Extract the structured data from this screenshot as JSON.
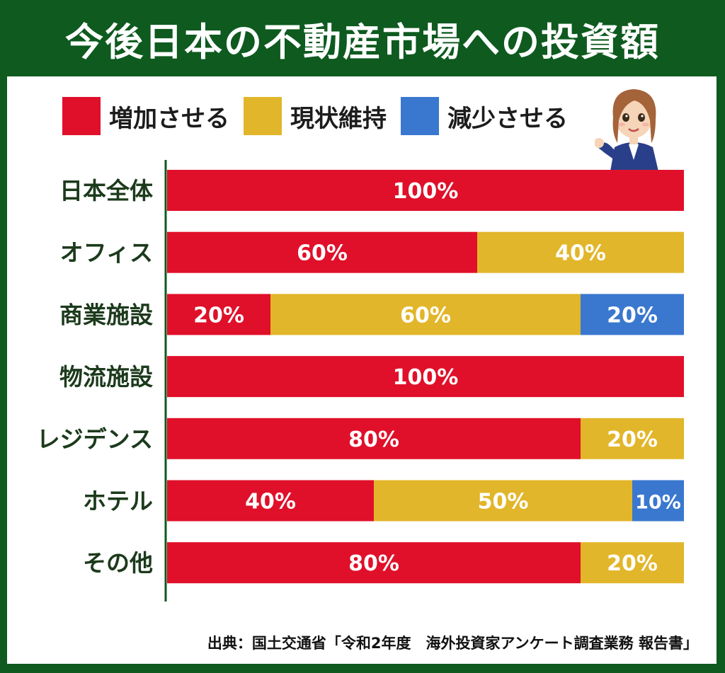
{
  "title": "今後日本の不動産市場への投資額",
  "source": "出典：国土交通省「令和2年度　海外投資家アンケート調査業務 報告書」",
  "legend": [
    {
      "label": "増加させる",
      "color": "#e0102a"
    },
    {
      "label": "現状維持",
      "color": "#e2b62a"
    },
    {
      "label": "減少させる",
      "color": "#3a78cf"
    }
  ],
  "chart_data": {
    "type": "bar",
    "orientation": "horizontal",
    "stacked": true,
    "title": "今後日本の不動産市場への投資額",
    "xlim": [
      0,
      100
    ],
    "legend_position": "top",
    "categories": [
      "日本全体",
      "オフィス",
      "商業施設",
      "物流施設",
      "レジデンス",
      "ホテル",
      "その他"
    ],
    "series": [
      {
        "name": "増加させる",
        "color": "#e0102a",
        "values": [
          100,
          60,
          20,
          100,
          80,
          40,
          80
        ]
      },
      {
        "name": "現状維持",
        "color": "#e2b62a",
        "values": [
          0,
          40,
          60,
          0,
          20,
          50,
          20
        ]
      },
      {
        "name": "減少させる",
        "color": "#3a78cf",
        "values": [
          0,
          0,
          20,
          0,
          0,
          10,
          0
        ]
      }
    ],
    "data_label_suffix": "%"
  }
}
